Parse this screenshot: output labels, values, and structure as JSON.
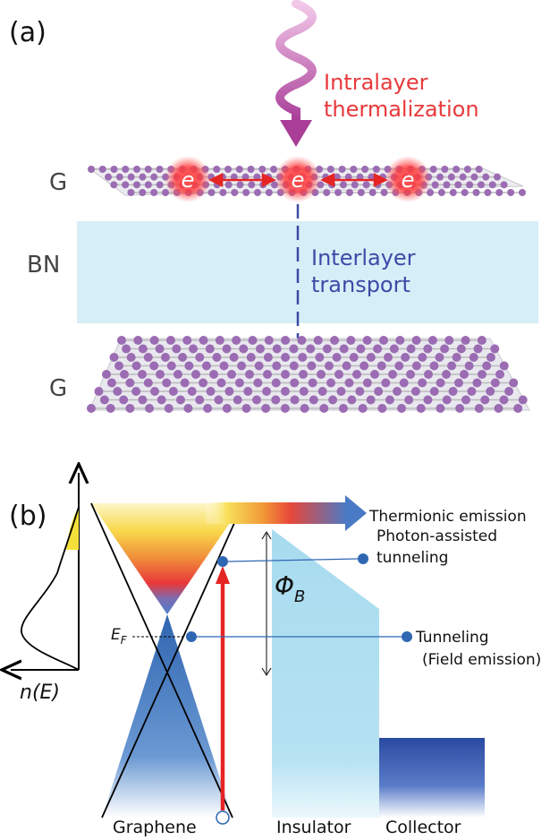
{
  "panel_a": {
    "label": "(a)",
    "photon_text_line1": "Intralayer",
    "photon_text_line2": "thermalization",
    "top_layer_label": "G",
    "middle_layer_label": "BN",
    "bottom_layer_label": "G",
    "transport_text_line1": "Interlayer",
    "transport_text_line2": "transport",
    "electron_symbol": "e",
    "colors": {
      "photon": "#b03c9a",
      "intralayer_text": "#e8393c",
      "electron": "#e8393c",
      "bn_layer": "#d6eef7",
      "transport_text": "#3b4aa6",
      "atom": "#9b6bb3"
    }
  },
  "panel_b": {
    "label": "(b)",
    "y_axis_label": "n(E)",
    "ef_label": "E",
    "ef_subscript": "F",
    "phi_label": "Φ",
    "phi_subscript": "B",
    "thermionic_label": "Thermionic emission",
    "photon_assisted_line1": "Photon-assisted",
    "photon_assisted_line2": "tunneling",
    "tunneling_line1": "Tunneling",
    "tunneling_line2": "(Field emission)",
    "graphene_label": "Graphene",
    "insulator_label": "Insulator",
    "collector_label": "Collector",
    "colors": {
      "hot": "#e63a35",
      "warm": "#f6e04a",
      "cool": "#4b7fc6",
      "insulator": "#a9dcef",
      "collector": "#2e4ea3",
      "arrow": "#2f67b3",
      "excite": "#e52524"
    }
  }
}
